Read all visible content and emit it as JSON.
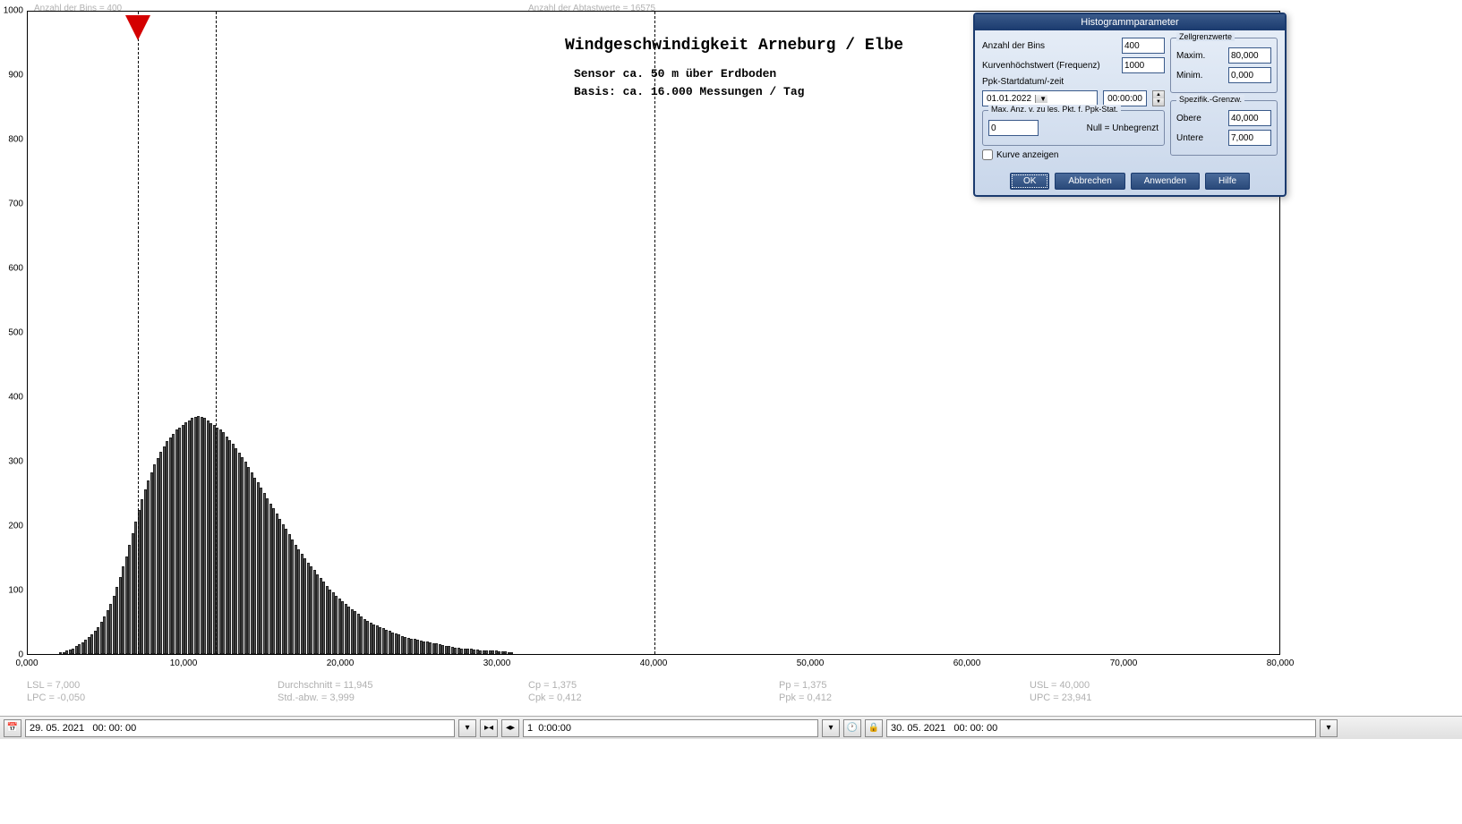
{
  "top_info": {
    "bins_label": "Anzahl der Bins =    400",
    "samples_label": "Anzahl der Abtastwerte = 16575"
  },
  "chart": {
    "title": "Windgeschwindigkeit  Arneburg / Elbe",
    "subtitle1": "Sensor ca. 50 m über Erdboden",
    "subtitle2": "Basis: ca. 16.000 Messungen / Tag",
    "y_ticks": [
      0,
      100,
      200,
      300,
      400,
      500,
      600,
      700,
      800,
      900,
      1000
    ],
    "y_max": 1000,
    "x_ticks": [
      {
        "v": 0,
        "label": "0,000"
      },
      {
        "v": 10,
        "label": "10,000"
      },
      {
        "v": 20,
        "label": "20,000"
      },
      {
        "v": 30,
        "label": "30,000"
      },
      {
        "v": 40,
        "label": "40,000"
      },
      {
        "v": 50,
        "label": "50,000"
      },
      {
        "v": 60,
        "label": "60,000"
      },
      {
        "v": 70,
        "label": "70,000"
      },
      {
        "v": 80,
        "label": "80,000"
      }
    ],
    "x_max": 80,
    "vlines": [
      7,
      12,
      40
    ],
    "marker_x": 7,
    "bar_color": "#555555",
    "bars_start_x": 2.0,
    "bars_step": 0.2,
    "bars": [
      2,
      3,
      5,
      7,
      9,
      12,
      15,
      18,
      22,
      26,
      30,
      36,
      42,
      50,
      58,
      68,
      78,
      90,
      104,
      120,
      136,
      152,
      170,
      188,
      206,
      224,
      240,
      256,
      270,
      282,
      294,
      304,
      314,
      322,
      330,
      336,
      342,
      348,
      352,
      356,
      360,
      362,
      366,
      368,
      370,
      368,
      366,
      362,
      358,
      356,
      352,
      348,
      344,
      338,
      332,
      326,
      320,
      312,
      306,
      298,
      290,
      282,
      274,
      266,
      258,
      250,
      242,
      234,
      226,
      218,
      210,
      202,
      194,
      186,
      178,
      170,
      162,
      156,
      148,
      142,
      136,
      130,
      124,
      118,
      112,
      106,
      100,
      96,
      90,
      86,
      82,
      78,
      74,
      70,
      66,
      62,
      58,
      54,
      52,
      48,
      46,
      44,
      42,
      40,
      38,
      36,
      34,
      32,
      30,
      28,
      26,
      25,
      24,
      23,
      22,
      21,
      20,
      19,
      18,
      17,
      16,
      15,
      14,
      13,
      12,
      11,
      10,
      10,
      9,
      9,
      8,
      8,
      7,
      7,
      6,
      6,
      6,
      5,
      5,
      5,
      4,
      4,
      4,
      3,
      3
    ]
  },
  "stats": {
    "lsl": "LSL = 7,000",
    "lpc": "LPC = -0,050",
    "avg": "Durchschnitt  = 11,945",
    "std": "Std.-abw. = 3,999",
    "cp": "Cp  = 1,375",
    "cpk": "Cpk = 0,412",
    "pp": "Pp  = 1,375",
    "ppk": "Ppk = 0,412",
    "usl": "USL = 40,000",
    "upc": "UPC = 23,941"
  },
  "toolbar": {
    "date_from": "29. 05. 2021   00: 00: 00",
    "date_to": "30. 05. 2021   00: 00: 00",
    "duration": "1  0:00:00"
  },
  "dialog": {
    "title": "Histogrammparameter",
    "bins_label": "Anzahl der Bins",
    "bins_value": "400",
    "peak_label": "Kurvenhöchstwert (Frequenz)",
    "peak_value": "1000",
    "ppk_label": "Ppk-Startdatum/-zeit",
    "ppk_date": "01.01.2022",
    "ppk_time": "00:00:00",
    "max_group_label": "Max. Anz. v. zu les. Pkt. f. Ppk-Stat.",
    "max_value": "0",
    "null_label": "Null = Unbegrenzt",
    "show_curve": "Kurve anzeigen",
    "cell_limits": "Zellgrenzwerte",
    "max_label": "Maxim.",
    "max_val": "80,000",
    "min_label": "Minim.",
    "min_val": "0,000",
    "spec_limits": "Spezifik.-Grenzw.",
    "upper_label": "Obere",
    "upper_val": "40,000",
    "lower_label": "Untere",
    "lower_val": "7,000",
    "ok": "OK",
    "cancel": "Abbrechen",
    "apply": "Anwenden",
    "help": "Hilfe"
  }
}
